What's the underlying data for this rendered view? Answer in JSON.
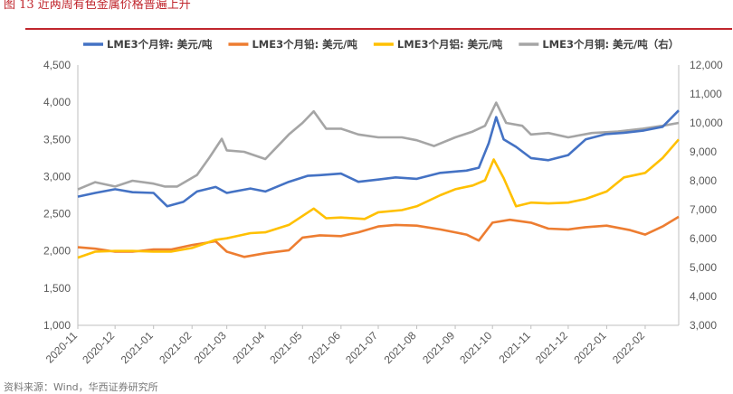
{
  "figure": {
    "title": "图 13    近两周有色金属价格普遍上升",
    "source": "资料来源：Wind，华西证券研究所"
  },
  "colors": {
    "zinc": "#4472c4",
    "lead": "#ed7d31",
    "aluminum": "#ffc000",
    "copper": "#a5a5a5",
    "accent": "#c0262d"
  },
  "chart_data": {
    "type": "line",
    "title": "",
    "xlabel": "",
    "ylabel": "",
    "x_ticks": [
      "2020-11",
      "2020-12",
      "2021-01",
      "2021-02",
      "2021-03",
      "2021-04",
      "2021-05",
      "2021-06",
      "2021-07",
      "2021-08",
      "2021-09",
      "2021-10",
      "2021-11",
      "2021-12",
      "2022-01",
      "2022-02"
    ],
    "left_axis": {
      "min": 1000,
      "max": 4500,
      "ticks": [
        "1,000",
        "1,500",
        "2,000",
        "2,500",
        "3,000",
        "3,500",
        "4,000",
        "4,500"
      ]
    },
    "right_axis": {
      "min": 3000,
      "max": 12000,
      "ticks": [
        "3,000",
        "4,000",
        "5,000",
        "6,000",
        "7,000",
        "8,000",
        "9,000",
        "10,000",
        "11,000",
        "12,000"
      ]
    },
    "legend_position": "top",
    "grid": "none",
    "series": [
      {
        "key": "zinc",
        "name": "LME3个月锌: 美元/吨",
        "axis": "left",
        "points": [
          [
            "2020-11-01",
            2730
          ],
          [
            "2020-11-15",
            2780
          ],
          [
            "2020-12-01",
            2830
          ],
          [
            "2020-12-15",
            2790
          ],
          [
            "2021-01-01",
            2780
          ],
          [
            "2021-01-12",
            2600
          ],
          [
            "2021-01-25",
            2660
          ],
          [
            "2021-02-05",
            2800
          ],
          [
            "2021-02-20",
            2860
          ],
          [
            "2021-03-01",
            2780
          ],
          [
            "2021-03-20",
            2840
          ],
          [
            "2021-04-01",
            2800
          ],
          [
            "2021-04-20",
            2930
          ],
          [
            "2021-05-05",
            3010
          ],
          [
            "2021-05-15",
            3020
          ],
          [
            "2021-06-01",
            3040
          ],
          [
            "2021-06-15",
            2930
          ],
          [
            "2021-07-01",
            2960
          ],
          [
            "2021-07-15",
            2990
          ],
          [
            "2021-08-01",
            2970
          ],
          [
            "2021-08-20",
            3050
          ],
          [
            "2021-09-10",
            3080
          ],
          [
            "2021-09-20",
            3120
          ],
          [
            "2021-09-28",
            3450
          ],
          [
            "2021-10-04",
            3800
          ],
          [
            "2021-10-10",
            3500
          ],
          [
            "2021-10-20",
            3400
          ],
          [
            "2021-11-01",
            3250
          ],
          [
            "2021-11-15",
            3220
          ],
          [
            "2021-12-01",
            3290
          ],
          [
            "2021-12-15",
            3500
          ],
          [
            "2021-12-31",
            3570
          ],
          [
            "2022-01-15",
            3590
          ],
          [
            "2022-01-31",
            3620
          ],
          [
            "2022-02-15",
            3670
          ],
          [
            "2022-02-28",
            3890
          ]
        ]
      },
      {
        "key": "lead",
        "name": "LME3个月铅: 美元/吨",
        "axis": "left",
        "points": [
          [
            "2020-11-01",
            2050
          ],
          [
            "2020-11-15",
            2030
          ],
          [
            "2020-12-01",
            1990
          ],
          [
            "2020-12-15",
            1990
          ],
          [
            "2021-01-01",
            2020
          ],
          [
            "2021-01-15",
            2020
          ],
          [
            "2021-02-01",
            2080
          ],
          [
            "2021-02-20",
            2130
          ],
          [
            "2021-03-01",
            1990
          ],
          [
            "2021-03-15",
            1920
          ],
          [
            "2021-04-01",
            1970
          ],
          [
            "2021-04-20",
            2010
          ],
          [
            "2021-05-01",
            2180
          ],
          [
            "2021-05-15",
            2210
          ],
          [
            "2021-06-01",
            2200
          ],
          [
            "2021-06-15",
            2250
          ],
          [
            "2021-07-01",
            2330
          ],
          [
            "2021-07-15",
            2350
          ],
          [
            "2021-08-01",
            2340
          ],
          [
            "2021-08-20",
            2290
          ],
          [
            "2021-09-10",
            2220
          ],
          [
            "2021-09-20",
            2140
          ],
          [
            "2021-10-01",
            2380
          ],
          [
            "2021-10-15",
            2420
          ],
          [
            "2021-11-01",
            2380
          ],
          [
            "2021-11-15",
            2300
          ],
          [
            "2021-12-01",
            2290
          ],
          [
            "2021-12-15",
            2320
          ],
          [
            "2022-01-01",
            2340
          ],
          [
            "2022-01-20",
            2280
          ],
          [
            "2022-02-01",
            2220
          ],
          [
            "2022-02-15",
            2330
          ],
          [
            "2022-02-28",
            2460
          ]
        ]
      },
      {
        "key": "aluminum",
        "name": "LME3个月铝: 美元/吨",
        "axis": "left",
        "points": [
          [
            "2020-11-01",
            1910
          ],
          [
            "2020-11-15",
            1990
          ],
          [
            "2020-12-01",
            2000
          ],
          [
            "2020-12-15",
            2000
          ],
          [
            "2021-01-01",
            1990
          ],
          [
            "2021-01-15",
            1990
          ],
          [
            "2021-02-01",
            2040
          ],
          [
            "2021-02-20",
            2150
          ],
          [
            "2021-03-01",
            2170
          ],
          [
            "2021-03-20",
            2240
          ],
          [
            "2021-04-01",
            2250
          ],
          [
            "2021-04-20",
            2350
          ],
          [
            "2021-05-10",
            2570
          ],
          [
            "2021-05-20",
            2440
          ],
          [
            "2021-06-01",
            2450
          ],
          [
            "2021-06-20",
            2430
          ],
          [
            "2021-07-01",
            2520
          ],
          [
            "2021-07-20",
            2550
          ],
          [
            "2021-08-01",
            2600
          ],
          [
            "2021-08-20",
            2750
          ],
          [
            "2021-09-01",
            2830
          ],
          [
            "2021-09-15",
            2880
          ],
          [
            "2021-09-25",
            2950
          ],
          [
            "2021-10-02",
            3230
          ],
          [
            "2021-10-10",
            2980
          ],
          [
            "2021-10-20",
            2600
          ],
          [
            "2021-11-01",
            2650
          ],
          [
            "2021-11-15",
            2640
          ],
          [
            "2021-12-01",
            2650
          ],
          [
            "2021-12-15",
            2700
          ],
          [
            "2022-01-01",
            2800
          ],
          [
            "2022-01-15",
            2990
          ],
          [
            "2022-02-01",
            3050
          ],
          [
            "2022-02-15",
            3250
          ],
          [
            "2022-02-28",
            3500
          ]
        ]
      },
      {
        "key": "copper",
        "name": "LME3个月铜: 美元/吨（右）",
        "axis": "right",
        "points": [
          [
            "2020-11-01",
            7700
          ],
          [
            "2020-11-15",
            7950
          ],
          [
            "2020-12-01",
            7800
          ],
          [
            "2020-12-15",
            8000
          ],
          [
            "2021-01-01",
            7900
          ],
          [
            "2021-01-10",
            7800
          ],
          [
            "2021-01-20",
            7800
          ],
          [
            "2021-02-05",
            8200
          ],
          [
            "2021-02-15",
            8800
          ],
          [
            "2021-02-25",
            9450
          ],
          [
            "2021-03-01",
            9050
          ],
          [
            "2021-03-15",
            9000
          ],
          [
            "2021-04-01",
            8750
          ],
          [
            "2021-04-20",
            9600
          ],
          [
            "2021-05-01",
            10000
          ],
          [
            "2021-05-10",
            10400
          ],
          [
            "2021-05-20",
            9800
          ],
          [
            "2021-06-01",
            9800
          ],
          [
            "2021-06-15",
            9600
          ],
          [
            "2021-07-01",
            9500
          ],
          [
            "2021-07-20",
            9500
          ],
          [
            "2021-08-01",
            9400
          ],
          [
            "2021-08-15",
            9200
          ],
          [
            "2021-09-01",
            9500
          ],
          [
            "2021-09-15",
            9700
          ],
          [
            "2021-09-25",
            9900
          ],
          [
            "2021-10-04",
            10700
          ],
          [
            "2021-10-12",
            10000
          ],
          [
            "2021-10-25",
            9900
          ],
          [
            "2021-11-01",
            9600
          ],
          [
            "2021-11-15",
            9650
          ],
          [
            "2021-12-01",
            9500
          ],
          [
            "2021-12-20",
            9650
          ],
          [
            "2022-01-10",
            9700
          ],
          [
            "2022-01-30",
            9800
          ],
          [
            "2022-02-15",
            9900
          ],
          [
            "2022-02-28",
            10000
          ]
        ]
      }
    ]
  }
}
